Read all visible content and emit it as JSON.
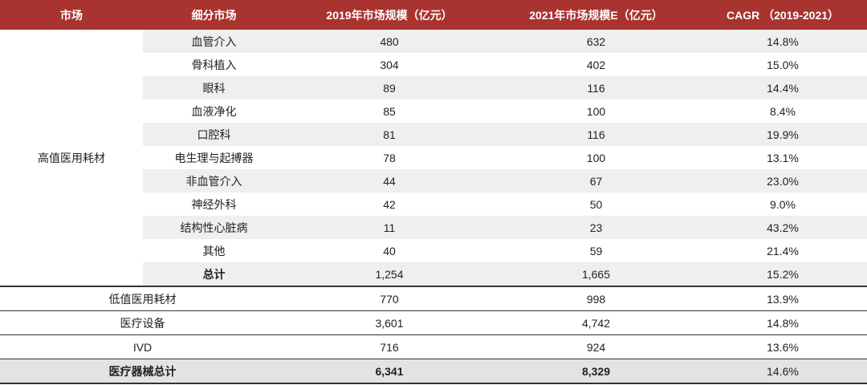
{
  "table": {
    "header": [
      "市场",
      "细分市场",
      "2019年市场规模（亿元）",
      "2021年市场规模E（亿元）",
      "CAGR （2019-2021）"
    ],
    "group": {
      "market": "高值医用耗材",
      "rows": [
        [
          "血管介入",
          "480",
          "632",
          "14.8%"
        ],
        [
          "骨科植入",
          "304",
          "402",
          "15.0%"
        ],
        [
          "眼科",
          "89",
          "116",
          "14.4%"
        ],
        [
          "血液净化",
          "85",
          "100",
          "8.4%"
        ],
        [
          "口腔科",
          "81",
          "116",
          "19.9%"
        ],
        [
          "电生理与起搏器",
          "78",
          "100",
          "13.1%"
        ],
        [
          "非血管介入",
          "44",
          "67",
          "23.0%"
        ],
        [
          "神经外科",
          "42",
          "50",
          "9.0%"
        ],
        [
          "结构性心脏病",
          "11",
          "23",
          "43.2%"
        ],
        [
          "其他",
          "40",
          "59",
          "21.4%"
        ],
        [
          "总计",
          "1,254",
          "1,665",
          "15.2%"
        ]
      ]
    },
    "rows": [
      [
        "低值医用耗材",
        "770",
        "998",
        "13.9%"
      ],
      [
        "医疗设备",
        "3,601",
        "4,742",
        "14.8%"
      ],
      [
        "IVD",
        "716",
        "924",
        "13.6%"
      ],
      [
        "医疗器械总计",
        "6,341",
        "8,329",
        "14.6%"
      ]
    ]
  }
}
